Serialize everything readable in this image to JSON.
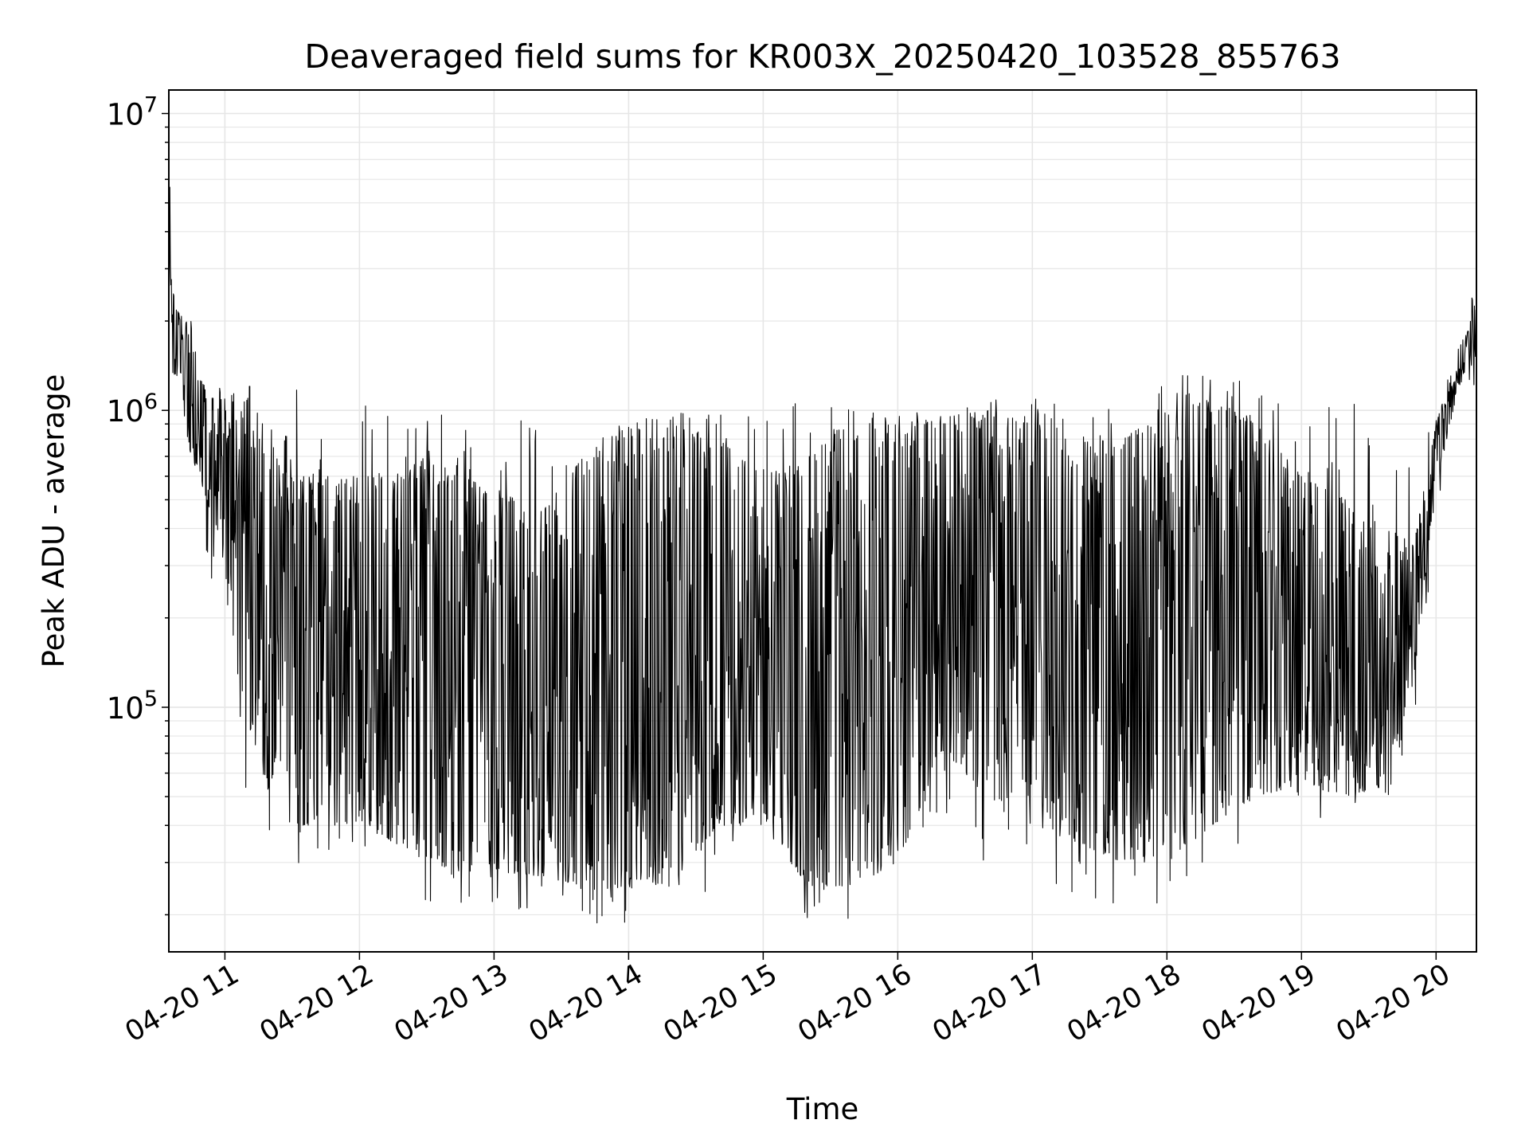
{
  "chart_data": {
    "type": "line",
    "title": "Deaveraged field sums for KR003X_20250420_103528_855763",
    "xlabel": "Time",
    "ylabel": "Peak ADU - average",
    "y_scale": "log",
    "ylim": [
      15000,
      12000000
    ],
    "xlim": [
      "2025-04-20 10:35",
      "2025-04-20 20:18"
    ],
    "x_ticks": [
      {
        "label": "04-20 11",
        "time": "2025-04-20 11:00"
      },
      {
        "label": "04-20 12",
        "time": "2025-04-20 12:00"
      },
      {
        "label": "04-20 13",
        "time": "2025-04-20 13:00"
      },
      {
        "label": "04-20 14",
        "time": "2025-04-20 14:00"
      },
      {
        "label": "04-20 15",
        "time": "2025-04-20 15:00"
      },
      {
        "label": "04-20 16",
        "time": "2025-04-20 16:00"
      },
      {
        "label": "04-20 17",
        "time": "2025-04-20 17:00"
      },
      {
        "label": "04-20 18",
        "time": "2025-04-20 18:00"
      },
      {
        "label": "04-20 19",
        "time": "2025-04-20 19:00"
      },
      {
        "label": "04-20 20",
        "time": "2025-04-20 20:00"
      }
    ],
    "y_ticks": [
      {
        "base": "10",
        "exp": "5",
        "value": 100000
      },
      {
        "base": "10",
        "exp": "6",
        "value": 1000000
      },
      {
        "base": "10",
        "exp": "7",
        "value": 10000000
      }
    ],
    "grid": true,
    "line_color": "#000000",
    "grid_color": "#e6e6e6",
    "series": [
      {
        "envelope": {
          "time": [
            "2025-04-20 10:35",
            "2025-04-20 10:38",
            "2025-04-20 10:45",
            "2025-04-20 10:52",
            "2025-04-20 10:58",
            "2025-04-20 11:05",
            "2025-04-20 11:12",
            "2025-04-20 11:20",
            "2025-04-20 11:30",
            "2025-04-20 11:45",
            "2025-04-20 12:00",
            "2025-04-20 12:15",
            "2025-04-20 12:30",
            "2025-04-20 12:45",
            "2025-04-20 13:00",
            "2025-04-20 13:20",
            "2025-04-20 13:40",
            "2025-04-20 14:00",
            "2025-04-20 14:20",
            "2025-04-20 14:40",
            "2025-04-20 15:00",
            "2025-04-20 15:20",
            "2025-04-20 15:40",
            "2025-04-20 16:00",
            "2025-04-20 16:20",
            "2025-04-20 16:40",
            "2025-04-20 17:00",
            "2025-04-20 17:20",
            "2025-04-20 17:40",
            "2025-04-20 18:00",
            "2025-04-20 18:20",
            "2025-04-20 18:40",
            "2025-04-20 19:00",
            "2025-04-20 19:20",
            "2025-04-20 19:40",
            "2025-04-20 19:50",
            "2025-04-20 20:00",
            "2025-04-20 20:10",
            "2025-04-20 20:18"
          ],
          "upper": [
            3500000,
            2200000,
            1900000,
            1100000,
            1100000,
            1100000,
            1100000,
            800000,
            600000,
            600000,
            600000,
            600000,
            700000,
            600000,
            550000,
            450000,
            700000,
            900000,
            950000,
            800000,
            600000,
            700000,
            950000,
            900000,
            950000,
            1000000,
            900000,
            850000,
            800000,
            1000000,
            1100000,
            900000,
            600000,
            500000,
            400000,
            350000,
            900000,
            1600000,
            2200000
          ],
          "lower": [
            1400000,
            1300000,
            700000,
            500000,
            350000,
            130000,
            80000,
            50000,
            40000,
            40000,
            40000,
            35000,
            30000,
            28000,
            28000,
            27000,
            25000,
            24000,
            26000,
            40000,
            40000,
            25000,
            25000,
            30000,
            70000,
            50000,
            40000,
            35000,
            30000,
            30000,
            40000,
            50000,
            55000,
            50000,
            55000,
            120000,
            550000,
            1200000,
            1500000
          ],
          "spike_max": [
            8500000,
            2300000,
            2100000,
            1400000,
            1200000,
            1250000,
            1200000,
            1000000,
            1200000,
            1000000,
            1100000,
            1000000,
            1000000,
            950000,
            900000,
            950000,
            950000,
            970000,
            990000,
            990000,
            1000000,
            1100000,
            1000000,
            970000,
            1000000,
            1150000,
            1100000,
            1050000,
            1000000,
            1300000,
            1350000,
            1250000,
            1200000,
            1100000,
            1000000,
            900000,
            1050000,
            1900000,
            2600000
          ],
          "spike_min": [
            700000,
            900000,
            500000,
            300000,
            150000,
            60000,
            40000,
            25000,
            28000,
            28000,
            25000,
            24000,
            22000,
            21000,
            21000,
            20000,
            19000,
            18000,
            18000,
            22000,
            30000,
            17000,
            17000,
            22000,
            40000,
            28000,
            25000,
            22000,
            20000,
            22000,
            30000,
            35000,
            40000,
            38000,
            40000,
            80000,
            450000,
            1100000,
            1200000
          ]
        }
      }
    ]
  }
}
